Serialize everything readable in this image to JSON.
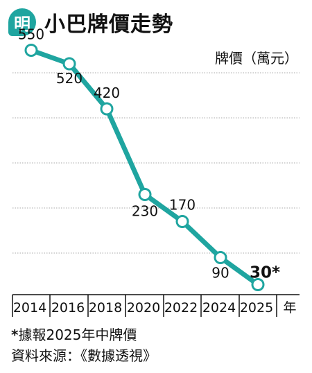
{
  "header": {
    "logo_char": "明",
    "title": "小巴牌價走勢"
  },
  "footnote": {
    "star": "*",
    "line1": "據報2025年中牌價",
    "line2": "資料來源：《數據透視》"
  },
  "colors": {
    "accent": "#1fa5a0",
    "text": "#111111",
    "grid": "#aaaaaa"
  },
  "chart_data": {
    "type": "line",
    "title": "小巴牌價走勢",
    "ylabel": "牌價（萬元）",
    "xlabel": "年",
    "x": [
      "2014",
      "2016",
      "2018",
      "2020",
      "2022",
      "2024",
      "2025"
    ],
    "series": [
      {
        "values": [
          550,
          520,
          420,
          230,
          170,
          90,
          30
        ],
        "labels": [
          "550",
          "520",
          "420",
          "230",
          "170",
          "90",
          "30*"
        ]
      }
    ],
    "ylim": [
      0,
      600
    ],
    "grid": true,
    "gridlines": "dotted-horizontal",
    "highlight_last": true
  }
}
